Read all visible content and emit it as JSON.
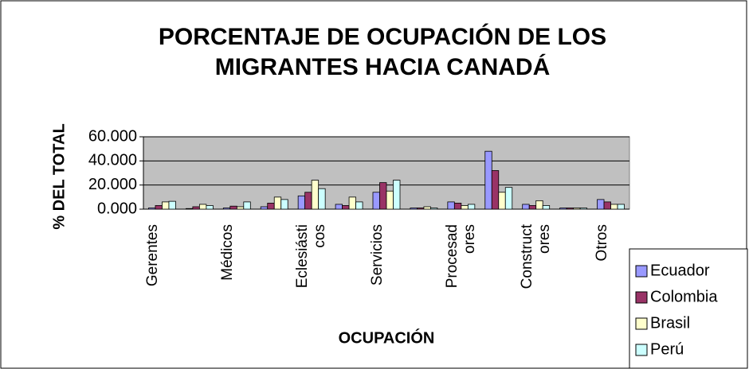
{
  "chart_data": {
    "type": "bar",
    "title": "PORCENTAJE DE OCUPACIÓN DE LOS MIGRANTES HACIA CANADÁ",
    "x_label": "OCUPACIÓN",
    "y_label": "% DEL TOTAL",
    "categories": [
      "Gerentes",
      null,
      "Médicos",
      null,
      "Eclesiásticos",
      null,
      "Servicios",
      null,
      "Procesadores",
      null,
      "Constructores",
      null,
      "Otros"
    ],
    "series": [
      {
        "name": "Ecuador",
        "color": "#9999ff",
        "values": [
          1,
          0.5,
          1,
          2,
          11,
          4,
          14,
          1,
          6,
          48,
          4,
          1,
          8
        ]
      },
      {
        "name": "Colombia",
        "color": "#993366",
        "values": [
          3,
          2,
          2.5,
          5,
          14,
          3,
          22,
          1,
          5,
          32,
          3,
          1,
          6
        ]
      },
      {
        "name": "Brasil",
        "color": "#ffffcc",
        "values": [
          6,
          4,
          2,
          10,
          24,
          10,
          15,
          2,
          3,
          14,
          7,
          1,
          4
        ]
      },
      {
        "name": "Perú",
        "color": "#ccffff",
        "values": [
          6.5,
          3,
          6,
          8,
          17,
          6,
          24,
          1,
          4,
          18,
          3,
          1,
          4
        ]
      }
    ],
    "ylim": [
      0,
      60
    ],
    "yticks": [
      {
        "value": 0,
        "label": "0.000"
      },
      {
        "value": 20,
        "label": "20.000"
      },
      {
        "value": 40,
        "label": "40.000"
      },
      {
        "value": 60,
        "label": "60.000"
      }
    ],
    "grid": true,
    "plot_background": "#c0c0c0",
    "legend": "bottom-right"
  }
}
